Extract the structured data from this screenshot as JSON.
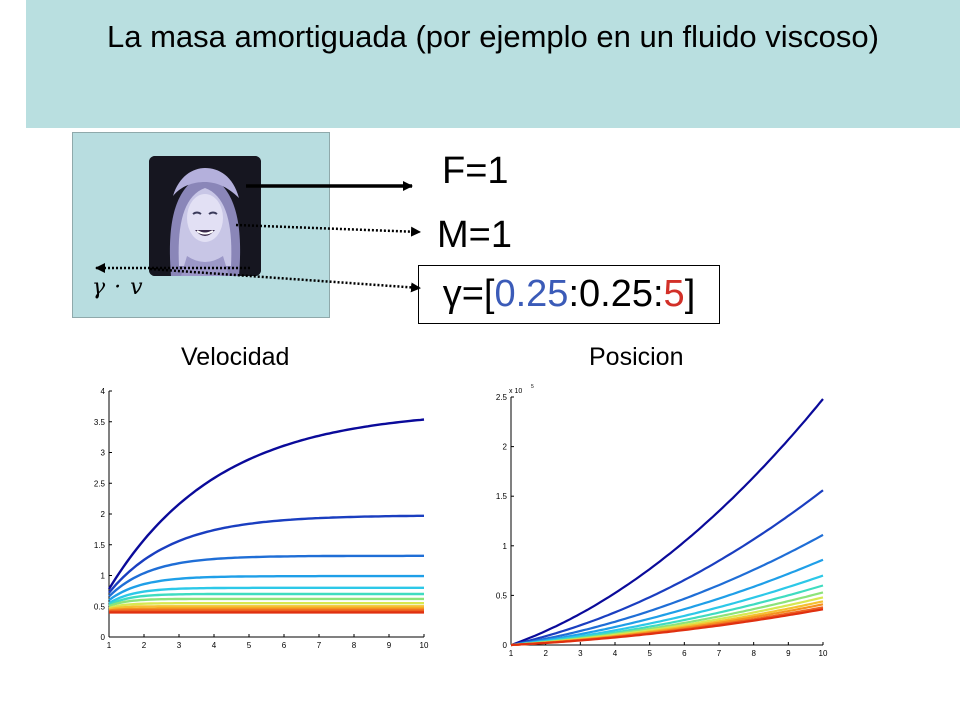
{
  "title": "La masa amortiguada (por ejemplo en un fluido viscoso)",
  "diagram": {
    "friction_label": "γ · v",
    "force_label": "F=1",
    "mass_label": "M=1",
    "gamma": {
      "prefix": "γ=[",
      "start": "0.25",
      "sep1": ":",
      "step": "0.25",
      "sep2": ":",
      "end": "5",
      "suffix": "]"
    }
  },
  "colors": {
    "title_band": "#b9dfe0",
    "mass_box": "#b8dde0",
    "gamma_start": "#3b5bb8",
    "gamma_end": "#d23028"
  },
  "icons": [
    "photo-of-mass",
    "force-arrow",
    "friction-arrow"
  ],
  "chart_data": [
    {
      "type": "line",
      "title": "Velocidad",
      "xlim": [
        1,
        10
      ],
      "ylim": [
        0,
        4
      ],
      "x_ticks": [
        1,
        2,
        3,
        4,
        5,
        6,
        7,
        8,
        9,
        10
      ],
      "y_ticks": [
        0,
        0.5,
        1,
        1.5,
        2,
        2.5,
        3,
        3.5,
        4
      ],
      "series": [
        {
          "color": "#0a0a9a",
          "plateau": 3.7,
          "start": 0.78,
          "rate": 0.32
        },
        {
          "color": "#1a3ec0",
          "plateau": 1.98,
          "start": 0.72,
          "rate": 0.55
        },
        {
          "color": "#1f6ed6",
          "plateau": 1.32,
          "start": 0.66,
          "rate": 0.85
        },
        {
          "color": "#1f9fe8",
          "plateau": 0.99,
          "start": 0.6,
          "rate": 1.1
        },
        {
          "color": "#2cc8e8",
          "plateau": 0.8,
          "start": 0.55,
          "rate": 1.4
        },
        {
          "color": "#3fdcc0",
          "plateau": 0.7,
          "start": 0.52,
          "rate": 1.7
        },
        {
          "color": "#8de37a",
          "plateau": 0.62,
          "start": 0.5,
          "rate": 2.0
        },
        {
          "color": "#d8e850",
          "plateau": 0.55,
          "start": 0.47,
          "rate": 2.3
        },
        {
          "color": "#f5c030",
          "plateau": 0.5,
          "start": 0.45,
          "rate": 2.6
        },
        {
          "color": "#f59220",
          "plateau": 0.46,
          "start": 0.43,
          "rate": 2.9
        },
        {
          "color": "#ee6020",
          "plateau": 0.43,
          "start": 0.42,
          "rate": 3.2
        },
        {
          "color": "#e03010",
          "plateau": 0.4,
          "start": 0.4,
          "rate": 3.5
        }
      ]
    },
    {
      "type": "line",
      "title": "Posicion",
      "multiplier_label": "x 10",
      "multiplier_exponent": "5",
      "xlim": [
        1,
        10
      ],
      "ylim": [
        0,
        2.5
      ],
      "x_ticks": [
        1,
        2,
        3,
        4,
        5,
        6,
        7,
        8,
        9,
        10
      ],
      "y_ticks": [
        0,
        0.5,
        1,
        1.5,
        2,
        2.5
      ],
      "series": [
        {
          "color": "#0a0a9a",
          "end": 2.48
        },
        {
          "color": "#1a3ec0",
          "end": 1.56
        },
        {
          "color": "#1f6ed6",
          "end": 1.11
        },
        {
          "color": "#1f9fe8",
          "end": 0.86
        },
        {
          "color": "#2cc8e8",
          "end": 0.7
        },
        {
          "color": "#3fdcc0",
          "end": 0.6
        },
        {
          "color": "#8de37a",
          "end": 0.53
        },
        {
          "color": "#d8e850",
          "end": 0.48
        },
        {
          "color": "#f5c030",
          "end": 0.44
        },
        {
          "color": "#f59220",
          "end": 0.41
        },
        {
          "color": "#ee6020",
          "end": 0.38
        },
        {
          "color": "#e03010",
          "end": 0.36
        }
      ]
    }
  ]
}
